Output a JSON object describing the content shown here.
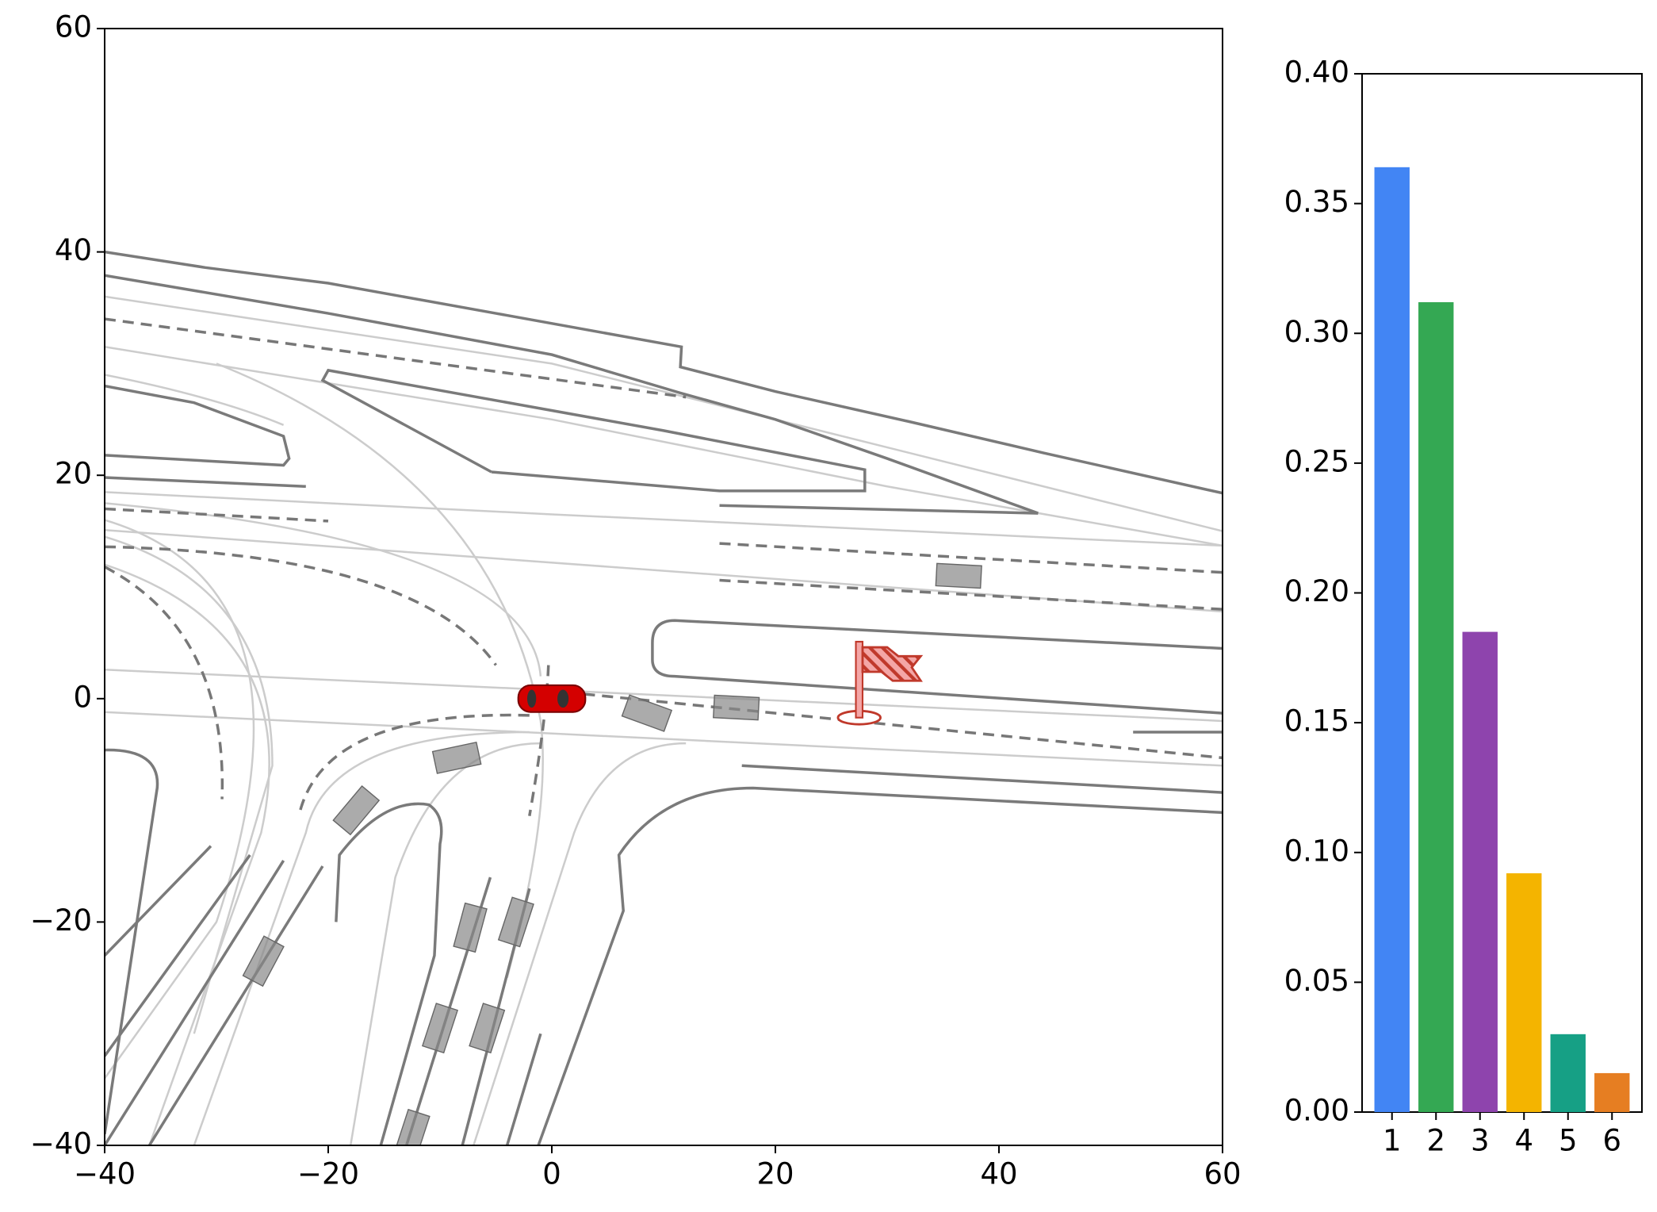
{
  "chart_data": [
    {
      "type": "map",
      "xlim": [
        -40,
        60
      ],
      "ylim": [
        -40,
        60
      ],
      "xticks": [
        {
          "value": -40,
          "label": "−40"
        },
        {
          "value": -20,
          "label": "−20"
        },
        0,
        20,
        40,
        60
      ],
      "yticks": [
        {
          "value": -40,
          "label": "−40"
        },
        {
          "value": -20,
          "label": "−20"
        },
        0,
        20,
        40,
        60
      ]
    },
    {
      "type": "bar",
      "categories": [
        "1",
        "2",
        "3",
        "4",
        "5",
        "6"
      ],
      "values": [
        0.364,
        0.312,
        0.185,
        0.092,
        0.03,
        0.015
      ],
      "colors": [
        "#4285f4",
        "#34a853",
        "#8e44ad",
        "#f4b400",
        "#16a085",
        "#e67e22"
      ],
      "ylim": [
        0,
        0.4
      ],
      "yticks": [
        {
          "value": 0,
          "label": "0.00"
        },
        {
          "value": 0.05,
          "label": "0.05"
        },
        {
          "value": 0.1,
          "label": "0.10"
        },
        {
          "value": 0.15,
          "label": "0.15"
        },
        {
          "value": 0.2,
          "label": "0.20"
        },
        {
          "value": 0.25,
          "label": "0.25"
        },
        {
          "value": 0.3,
          "label": "0.30"
        },
        {
          "value": 0.35,
          "label": "0.35"
        },
        {
          "value": 0.4,
          "label": "0.40"
        }
      ]
    }
  ]
}
